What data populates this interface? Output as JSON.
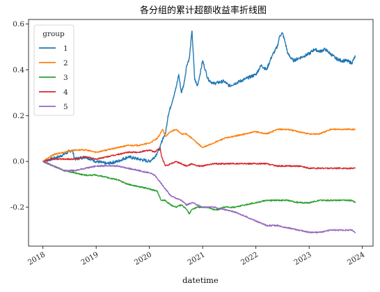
{
  "chart_data": {
    "type": "line",
    "title": "各分组的累计超额收益率折线图",
    "xlabel": "datetime",
    "ylabel": "",
    "legend_title": "group",
    "legend_position": "top-left",
    "grid": false,
    "x_ticks": [
      "2018",
      "2019",
      "2020",
      "2021",
      "2022",
      "2023",
      "2024"
    ],
    "y_ticks": [
      "-0.2",
      "0.0",
      "0.2",
      "0.4",
      "0.6"
    ],
    "xlim": [
      2017.73,
      2024.2
    ],
    "ylim": [
      -0.37,
      0.62
    ],
    "series": [
      {
        "name": "1",
        "color": "#1f77b4",
        "points": [
          [
            2018.0,
            0.0
          ],
          [
            2018.3,
            0.02
          ],
          [
            2018.55,
            0.05
          ],
          [
            2018.6,
            0.01
          ],
          [
            2018.8,
            0.02
          ],
          [
            2019.0,
            0.0
          ],
          [
            2019.2,
            -0.01
          ],
          [
            2019.4,
            0.0
          ],
          [
            2019.6,
            0.02
          ],
          [
            2019.8,
            0.01
          ],
          [
            2020.0,
            0.0
          ],
          [
            2020.1,
            0.02
          ],
          [
            2020.15,
            0.04
          ],
          [
            2020.2,
            0.06
          ],
          [
            2020.25,
            0.1
          ],
          [
            2020.3,
            0.12
          ],
          [
            2020.35,
            0.2
          ],
          [
            2020.4,
            0.24
          ],
          [
            2020.45,
            0.28
          ],
          [
            2020.5,
            0.32
          ],
          [
            2020.55,
            0.38
          ],
          [
            2020.6,
            0.3
          ],
          [
            2020.65,
            0.34
          ],
          [
            2020.7,
            0.42
          ],
          [
            2020.75,
            0.45
          ],
          [
            2020.8,
            0.57
          ],
          [
            2020.85,
            0.36
          ],
          [
            2020.9,
            0.33
          ],
          [
            2020.95,
            0.38
          ],
          [
            2021.0,
            0.44
          ],
          [
            2021.05,
            0.4
          ],
          [
            2021.1,
            0.36
          ],
          [
            2021.2,
            0.34
          ],
          [
            2021.4,
            0.35
          ],
          [
            2021.5,
            0.33
          ],
          [
            2021.6,
            0.34
          ],
          [
            2021.8,
            0.36
          ],
          [
            2022.0,
            0.38
          ],
          [
            2022.1,
            0.42
          ],
          [
            2022.2,
            0.4
          ],
          [
            2022.3,
            0.46
          ],
          [
            2022.4,
            0.5
          ],
          [
            2022.45,
            0.55
          ],
          [
            2022.5,
            0.56
          ],
          [
            2022.55,
            0.52
          ],
          [
            2022.6,
            0.47
          ],
          [
            2022.7,
            0.44
          ],
          [
            2022.8,
            0.45
          ],
          [
            2022.9,
            0.46
          ],
          [
            2023.0,
            0.47
          ],
          [
            2023.1,
            0.49
          ],
          [
            2023.2,
            0.48
          ],
          [
            2023.3,
            0.49
          ],
          [
            2023.4,
            0.47
          ],
          [
            2023.5,
            0.45
          ],
          [
            2023.6,
            0.44
          ],
          [
            2023.7,
            0.44
          ],
          [
            2023.8,
            0.43
          ],
          [
            2023.87,
            0.46
          ]
        ]
      },
      {
        "name": "2",
        "color": "#ff7f0e",
        "points": [
          [
            2018.0,
            0.0
          ],
          [
            2018.2,
            0.03
          ],
          [
            2018.4,
            0.04
          ],
          [
            2018.6,
            0.05
          ],
          [
            2018.8,
            0.05
          ],
          [
            2019.0,
            0.04
          ],
          [
            2019.2,
            0.05
          ],
          [
            2019.4,
            0.06
          ],
          [
            2019.6,
            0.07
          ],
          [
            2019.8,
            0.07
          ],
          [
            2020.0,
            0.08
          ],
          [
            2020.15,
            0.1
          ],
          [
            2020.25,
            0.14
          ],
          [
            2020.3,
            0.11
          ],
          [
            2020.4,
            0.13
          ],
          [
            2020.5,
            0.14
          ],
          [
            2020.6,
            0.12
          ],
          [
            2020.7,
            0.12
          ],
          [
            2020.8,
            0.1
          ],
          [
            2020.9,
            0.08
          ],
          [
            2021.0,
            0.06
          ],
          [
            2021.1,
            0.07
          ],
          [
            2021.2,
            0.08
          ],
          [
            2021.3,
            0.09
          ],
          [
            2021.4,
            0.1
          ],
          [
            2021.6,
            0.11
          ],
          [
            2021.8,
            0.12
          ],
          [
            2022.0,
            0.13
          ],
          [
            2022.2,
            0.12
          ],
          [
            2022.4,
            0.14
          ],
          [
            2022.6,
            0.14
          ],
          [
            2022.8,
            0.13
          ],
          [
            2023.0,
            0.12
          ],
          [
            2023.2,
            0.12
          ],
          [
            2023.4,
            0.14
          ],
          [
            2023.6,
            0.14
          ],
          [
            2023.8,
            0.14
          ],
          [
            2023.87,
            0.14
          ]
        ]
      },
      {
        "name": "3",
        "color": "#2ca02c",
        "points": [
          [
            2018.0,
            0.0
          ],
          [
            2018.2,
            -0.02
          ],
          [
            2018.4,
            -0.04
          ],
          [
            2018.6,
            -0.05
          ],
          [
            2018.8,
            -0.06
          ],
          [
            2019.0,
            -0.06
          ],
          [
            2019.2,
            -0.07
          ],
          [
            2019.4,
            -0.08
          ],
          [
            2019.6,
            -0.1
          ],
          [
            2019.8,
            -0.11
          ],
          [
            2020.0,
            -0.12
          ],
          [
            2020.15,
            -0.13
          ],
          [
            2020.22,
            -0.17
          ],
          [
            2020.3,
            -0.17
          ],
          [
            2020.4,
            -0.19
          ],
          [
            2020.5,
            -0.2
          ],
          [
            2020.6,
            -0.19
          ],
          [
            2020.7,
            -0.21
          ],
          [
            2020.75,
            -0.23
          ],
          [
            2020.8,
            -0.21
          ],
          [
            2020.9,
            -0.2
          ],
          [
            2021.0,
            -0.2
          ],
          [
            2021.1,
            -0.2
          ],
          [
            2021.2,
            -0.21
          ],
          [
            2021.3,
            -0.21
          ],
          [
            2021.4,
            -0.2
          ],
          [
            2021.5,
            -0.2
          ],
          [
            2021.6,
            -0.2
          ],
          [
            2021.8,
            -0.19
          ],
          [
            2022.0,
            -0.18
          ],
          [
            2022.2,
            -0.17
          ],
          [
            2022.4,
            -0.17
          ],
          [
            2022.6,
            -0.17
          ],
          [
            2022.8,
            -0.18
          ],
          [
            2023.0,
            -0.18
          ],
          [
            2023.2,
            -0.17
          ],
          [
            2023.4,
            -0.17
          ],
          [
            2023.6,
            -0.17
          ],
          [
            2023.8,
            -0.17
          ],
          [
            2023.87,
            -0.18
          ]
        ]
      },
      {
        "name": "4",
        "color": "#d62728",
        "points": [
          [
            2018.0,
            0.0
          ],
          [
            2018.2,
            0.01
          ],
          [
            2018.4,
            0.01
          ],
          [
            2018.6,
            0.01
          ],
          [
            2018.8,
            0.02
          ],
          [
            2019.0,
            0.01
          ],
          [
            2019.2,
            0.02
          ],
          [
            2019.4,
            0.03
          ],
          [
            2019.6,
            0.04
          ],
          [
            2019.8,
            0.04
          ],
          [
            2020.0,
            0.05
          ],
          [
            2020.1,
            0.04
          ],
          [
            2020.2,
            0.06
          ],
          [
            2020.23,
            0.02
          ],
          [
            2020.3,
            -0.02
          ],
          [
            2020.4,
            -0.01
          ],
          [
            2020.5,
            0.0
          ],
          [
            2020.6,
            -0.01
          ],
          [
            2020.7,
            -0.02
          ],
          [
            2020.8,
            -0.01
          ],
          [
            2020.9,
            -0.02
          ],
          [
            2021.0,
            -0.02
          ],
          [
            2021.2,
            -0.01
          ],
          [
            2021.4,
            -0.01
          ],
          [
            2021.6,
            -0.01
          ],
          [
            2021.8,
            -0.01
          ],
          [
            2022.0,
            -0.01
          ],
          [
            2022.2,
            -0.01
          ],
          [
            2022.4,
            -0.02
          ],
          [
            2022.6,
            -0.02
          ],
          [
            2022.8,
            -0.02
          ],
          [
            2023.0,
            -0.03
          ],
          [
            2023.2,
            -0.03
          ],
          [
            2023.4,
            -0.03
          ],
          [
            2023.6,
            -0.03
          ],
          [
            2023.8,
            -0.03
          ],
          [
            2023.87,
            -0.03
          ]
        ]
      },
      {
        "name": "5",
        "color": "#9467bd",
        "points": [
          [
            2018.0,
            0.0
          ],
          [
            2018.2,
            -0.02
          ],
          [
            2018.4,
            -0.04
          ],
          [
            2018.6,
            -0.04
          ],
          [
            2018.8,
            -0.03
          ],
          [
            2019.0,
            -0.02
          ],
          [
            2019.2,
            -0.02
          ],
          [
            2019.4,
            -0.02
          ],
          [
            2019.6,
            -0.03
          ],
          [
            2019.8,
            -0.04
          ],
          [
            2020.0,
            -0.05
          ],
          [
            2020.1,
            -0.06
          ],
          [
            2020.2,
            -0.09
          ],
          [
            2020.3,
            -0.12
          ],
          [
            2020.4,
            -0.15
          ],
          [
            2020.5,
            -0.16
          ],
          [
            2020.6,
            -0.17
          ],
          [
            2020.7,
            -0.19
          ],
          [
            2020.8,
            -0.18
          ],
          [
            2021.0,
            -0.2
          ],
          [
            2021.2,
            -0.2
          ],
          [
            2021.4,
            -0.21
          ],
          [
            2021.6,
            -0.22
          ],
          [
            2021.8,
            -0.24
          ],
          [
            2022.0,
            -0.26
          ],
          [
            2022.1,
            -0.27
          ],
          [
            2022.2,
            -0.28
          ],
          [
            2022.4,
            -0.28
          ],
          [
            2022.6,
            -0.29
          ],
          [
            2022.8,
            -0.3
          ],
          [
            2023.0,
            -0.31
          ],
          [
            2023.2,
            -0.31
          ],
          [
            2023.4,
            -0.3
          ],
          [
            2023.6,
            -0.3
          ],
          [
            2023.8,
            -0.3
          ],
          [
            2023.87,
            -0.31
          ]
        ]
      }
    ]
  }
}
